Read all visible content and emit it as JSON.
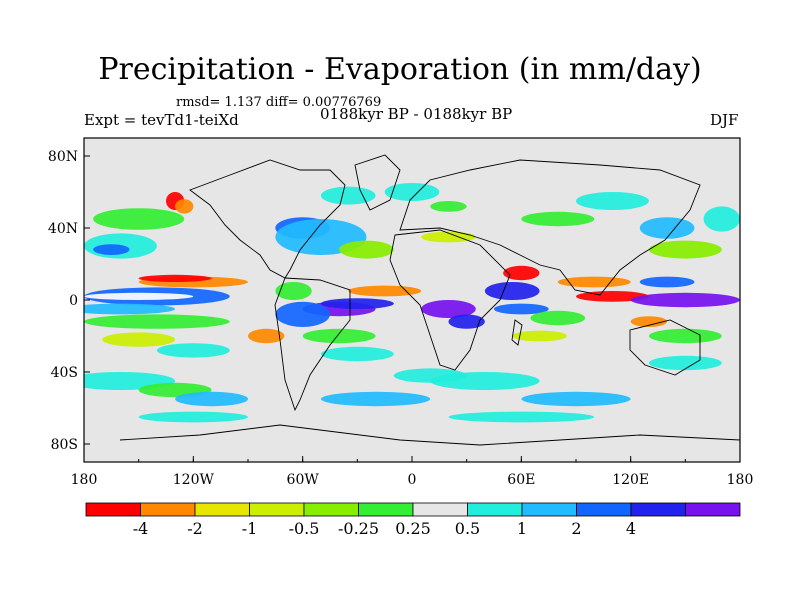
{
  "title": "Precipitation - Evaporation (in mm/day)",
  "stats_line": "rmsd= 1.137 diff= 0.00776769",
  "left_label": "Expt = tevTd1-teiXd",
  "center_label": "0188kyr BP - 0188kyr BP",
  "right_label": "DJF",
  "map": {
    "projection": "cylindrical-equidistant",
    "lon_range": [
      -180,
      180
    ],
    "lat_range": [
      -90,
      90
    ],
    "x_ticks": [
      {
        "value": -180,
        "label": "180"
      },
      {
        "value": -120,
        "label": "120W"
      },
      {
        "value": -60,
        "label": "60W"
      },
      {
        "value": 0,
        "label": "0"
      },
      {
        "value": 60,
        "label": "60E"
      },
      {
        "value": 120,
        "label": "120E"
      },
      {
        "value": 180,
        "label": "180"
      }
    ],
    "y_ticks": [
      {
        "value": 80,
        "label": "80N"
      },
      {
        "value": 40,
        "label": "40N"
      },
      {
        "value": 0,
        "label": "0"
      },
      {
        "value": -40,
        "label": "40S"
      },
      {
        "value": -80,
        "label": "80S"
      }
    ],
    "background_color": "#e6e6e6"
  },
  "colorbar": {
    "colors": [
      "#ff0000",
      "#ff8800",
      "#e6e600",
      "#ccee00",
      "#88ee00",
      "#33ee33",
      "#e6e6e6",
      "#22eedd",
      "#22bbff",
      "#1166ff",
      "#2222ee",
      "#7711ee"
    ],
    "levels": [
      "-4",
      "-2",
      "-1",
      "-0.5",
      "-0.25",
      "0.25",
      "0.5",
      "1",
      "2",
      "4"
    ]
  },
  "field_regions": [
    {
      "lon": -140,
      "lat": 2,
      "w": 80,
      "h": 10,
      "color": "#1166ff"
    },
    {
      "lon": -150,
      "lat": 2,
      "w": 60,
      "h": 4,
      "color": "#ffffff"
    },
    {
      "lon": -120,
      "lat": 10,
      "w": 60,
      "h": 6,
      "color": "#ff8800"
    },
    {
      "lon": -130,
      "lat": 12,
      "w": 40,
      "h": 4,
      "color": "#ff0000"
    },
    {
      "lon": -160,
      "lat": -5,
      "w": 60,
      "h": 6,
      "color": "#22bbff"
    },
    {
      "lon": -140,
      "lat": -12,
      "w": 80,
      "h": 8,
      "color": "#33ee33"
    },
    {
      "lon": -150,
      "lat": -22,
      "w": 40,
      "h": 8,
      "color": "#ccee00"
    },
    {
      "lon": -120,
      "lat": -28,
      "w": 40,
      "h": 8,
      "color": "#22eedd"
    },
    {
      "lon": -160,
      "lat": -45,
      "w": 60,
      "h": 10,
      "color": "#22eedd"
    },
    {
      "lon": -130,
      "lat": -50,
      "w": 40,
      "h": 8,
      "color": "#33ee33"
    },
    {
      "lon": -110,
      "lat": -55,
      "w": 40,
      "h": 8,
      "color": "#22bbff"
    },
    {
      "lon": -160,
      "lat": 30,
      "w": 40,
      "h": 14,
      "color": "#22eedd"
    },
    {
      "lon": -150,
      "lat": 45,
      "w": 50,
      "h": 12,
      "color": "#33ee33"
    },
    {
      "lon": -165,
      "lat": 28,
      "w": 20,
      "h": 6,
      "color": "#1166ff"
    },
    {
      "lon": -130,
      "lat": 55,
      "w": 10,
      "h": 10,
      "color": "#ff0000"
    },
    {
      "lon": -125,
      "lat": 52,
      "w": 10,
      "h": 8,
      "color": "#ff8800"
    },
    {
      "lon": -60,
      "lat": 40,
      "w": 30,
      "h": 12,
      "color": "#1166ff"
    },
    {
      "lon": -50,
      "lat": 35,
      "w": 50,
      "h": 20,
      "color": "#22bbff"
    },
    {
      "lon": -35,
      "lat": 58,
      "w": 30,
      "h": 10,
      "color": "#22eedd"
    },
    {
      "lon": -25,
      "lat": 28,
      "w": 30,
      "h": 10,
      "color": "#88ee00"
    },
    {
      "lon": -40,
      "lat": -5,
      "w": 40,
      "h": 8,
      "color": "#7711ee"
    },
    {
      "lon": -30,
      "lat": -2,
      "w": 40,
      "h": 6,
      "color": "#2222ee"
    },
    {
      "lon": -60,
      "lat": -8,
      "w": 30,
      "h": 14,
      "color": "#1166ff"
    },
    {
      "lon": -15,
      "lat": 5,
      "w": 40,
      "h": 6,
      "color": "#ff8800"
    },
    {
      "lon": -65,
      "lat": 5,
      "w": 20,
      "h": 10,
      "color": "#33ee33"
    },
    {
      "lon": -40,
      "lat": -20,
      "w": 40,
      "h": 8,
      "color": "#33ee33"
    },
    {
      "lon": -30,
      "lat": -30,
      "w": 40,
      "h": 8,
      "color": "#22eedd"
    },
    {
      "lon": -80,
      "lat": -20,
      "w": 20,
      "h": 8,
      "color": "#ff8800"
    },
    {
      "lon": 20,
      "lat": -5,
      "w": 30,
      "h": 10,
      "color": "#7711ee"
    },
    {
      "lon": 30,
      "lat": -12,
      "w": 20,
      "h": 8,
      "color": "#2222ee"
    },
    {
      "lon": 55,
      "lat": 5,
      "w": 30,
      "h": 10,
      "color": "#2222ee"
    },
    {
      "lon": 60,
      "lat": -5,
      "w": 30,
      "h": 6,
      "color": "#1166ff"
    },
    {
      "lon": 60,
      "lat": 15,
      "w": 20,
      "h": 8,
      "color": "#ff0000"
    },
    {
      "lon": 80,
      "lat": -10,
      "w": 30,
      "h": 8,
      "color": "#33ee33"
    },
    {
      "lon": 70,
      "lat": -20,
      "w": 30,
      "h": 6,
      "color": "#ccee00"
    },
    {
      "lon": 100,
      "lat": 10,
      "w": 40,
      "h": 6,
      "color": "#ff8800"
    },
    {
      "lon": 110,
      "lat": 2,
      "w": 40,
      "h": 6,
      "color": "#ff0000"
    },
    {
      "lon": 150,
      "lat": 0,
      "w": 60,
      "h": 8,
      "color": "#7711ee"
    },
    {
      "lon": 140,
      "lat": 10,
      "w": 30,
      "h": 6,
      "color": "#1166ff"
    },
    {
      "lon": 150,
      "lat": 28,
      "w": 40,
      "h": 10,
      "color": "#88ee00"
    },
    {
      "lon": 140,
      "lat": 40,
      "w": 30,
      "h": 12,
      "color": "#22bbff"
    },
    {
      "lon": 170,
      "lat": 45,
      "w": 20,
      "h": 14,
      "color": "#22eedd"
    },
    {
      "lon": 130,
      "lat": -12,
      "w": 20,
      "h": 6,
      "color": "#ff8800"
    },
    {
      "lon": 150,
      "lat": -20,
      "w": 40,
      "h": 8,
      "color": "#33ee33"
    },
    {
      "lon": 150,
      "lat": -35,
      "w": 40,
      "h": 8,
      "color": "#22eedd"
    },
    {
      "lon": 40,
      "lat": -45,
      "w": 60,
      "h": 10,
      "color": "#22eedd"
    },
    {
      "lon": 90,
      "lat": -55,
      "w": 60,
      "h": 8,
      "color": "#22bbff"
    },
    {
      "lon": -20,
      "lat": -55,
      "w": 60,
      "h": 8,
      "color": "#22bbff"
    },
    {
      "lon": 10,
      "lat": -42,
      "w": 40,
      "h": 8,
      "color": "#22eedd"
    },
    {
      "lon": -120,
      "lat": -65,
      "w": 60,
      "h": 6,
      "color": "#22eedd"
    },
    {
      "lon": 60,
      "lat": -65,
      "w": 80,
      "h": 6,
      "color": "#22eedd"
    },
    {
      "lon": 0,
      "lat": 60,
      "w": 30,
      "h": 10,
      "color": "#22eedd"
    },
    {
      "lon": 20,
      "lat": 52,
      "w": 20,
      "h": 6,
      "color": "#33ee33"
    },
    {
      "lon": 80,
      "lat": 45,
      "w": 40,
      "h": 8,
      "color": "#33ee33"
    },
    {
      "lon": 110,
      "lat": 55,
      "w": 40,
      "h": 10,
      "color": "#22eedd"
    },
    {
      "lon": 20,
      "lat": 35,
      "w": 30,
      "h": 6,
      "color": "#ccee00"
    }
  ]
}
